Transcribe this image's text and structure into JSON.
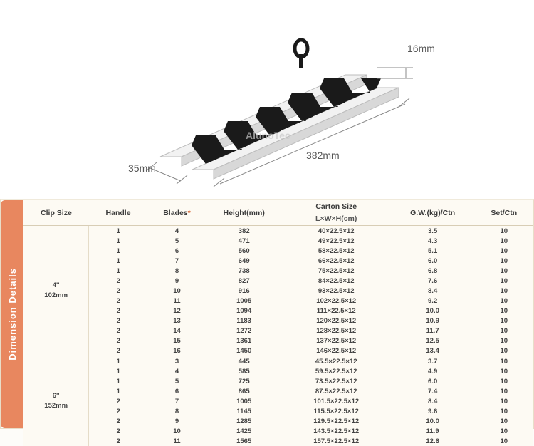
{
  "diagram": {
    "dim_height": "16mm",
    "dim_width": "35mm",
    "dim_length": "382mm",
    "watermark": "AlunoTec"
  },
  "table": {
    "side_label": "Dimension Details",
    "headers": {
      "clip_size": "Clip Size",
      "handle": "Handle",
      "blades": "Blades",
      "height": "Height(mm)",
      "carton_main": "Carton Size",
      "carton_sub": "L×W×H(cm)",
      "gw": "G.W.(kg)/Ctn",
      "set": "Set/Ctn"
    },
    "groups": [
      {
        "clip_label": "4''\n102mm",
        "rows": [
          {
            "handle": "1",
            "blades": "4",
            "height": "382",
            "carton": "40×22.5×12",
            "gw": "3.5",
            "set": "10"
          },
          {
            "handle": "1",
            "blades": "5",
            "height": "471",
            "carton": "49×22.5×12",
            "gw": "4.3",
            "set": "10"
          },
          {
            "handle": "1",
            "blades": "6",
            "height": "560",
            "carton": "58×22.5×12",
            "gw": "5.1",
            "set": "10"
          },
          {
            "handle": "1",
            "blades": "7",
            "height": "649",
            "carton": "66×22.5×12",
            "gw": "6.0",
            "set": "10"
          },
          {
            "handle": "1",
            "blades": "8",
            "height": "738",
            "carton": "75×22.5×12",
            "gw": "6.8",
            "set": "10"
          },
          {
            "handle": "2",
            "blades": "9",
            "height": "827",
            "carton": "84×22.5×12",
            "gw": "7.6",
            "set": "10"
          },
          {
            "handle": "2",
            "blades": "10",
            "height": "916",
            "carton": "93×22.5×12",
            "gw": "8.4",
            "set": "10"
          },
          {
            "handle": "2",
            "blades": "11",
            "height": "1005",
            "carton": "102×22.5×12",
            "gw": "9.2",
            "set": "10"
          },
          {
            "handle": "2",
            "blades": "12",
            "height": "1094",
            "carton": "111×22.5×12",
            "gw": "10.0",
            "set": "10"
          },
          {
            "handle": "2",
            "blades": "13",
            "height": "1183",
            "carton": "120×22.5×12",
            "gw": "10.9",
            "set": "10"
          },
          {
            "handle": "2",
            "blades": "14",
            "height": "1272",
            "carton": "128×22.5×12",
            "gw": "11.7",
            "set": "10"
          },
          {
            "handle": "2",
            "blades": "15",
            "height": "1361",
            "carton": "137×22.5×12",
            "gw": "12.5",
            "set": "10"
          },
          {
            "handle": "2",
            "blades": "16",
            "height": "1450",
            "carton": "146×22.5×12",
            "gw": "13.4",
            "set": "10"
          }
        ]
      },
      {
        "clip_label": "6''\n152mm",
        "rows": [
          {
            "handle": "1",
            "blades": "3",
            "height": "445",
            "carton": "45.5×22.5×12",
            "gw": "3.7",
            "set": "10"
          },
          {
            "handle": "1",
            "blades": "4",
            "height": "585",
            "carton": "59.5×22.5×12",
            "gw": "4.9",
            "set": "10"
          },
          {
            "handle": "1",
            "blades": "5",
            "height": "725",
            "carton": "73.5×22.5×12",
            "gw": "6.0",
            "set": "10"
          },
          {
            "handle": "1",
            "blades": "6",
            "height": "865",
            "carton": "87.5×22.5×12",
            "gw": "7.4",
            "set": "10"
          },
          {
            "handle": "2",
            "blades": "7",
            "height": "1005",
            "carton": "101.5×22.5×12",
            "gw": "8.4",
            "set": "10"
          },
          {
            "handle": "2",
            "blades": "8",
            "height": "1145",
            "carton": "115.5×22.5×12",
            "gw": "9.6",
            "set": "10"
          },
          {
            "handle": "2",
            "blades": "9",
            "height": "1285",
            "carton": "129.5×22.5×12",
            "gw": "10.0",
            "set": "10"
          },
          {
            "handle": "2",
            "blades": "10",
            "height": "1425",
            "carton": "143.5×22.5×12",
            "gw": "11.9",
            "set": "10"
          },
          {
            "handle": "2",
            "blades": "11",
            "height": "1565",
            "carton": "157.5×22.5×12",
            "gw": "12.6",
            "set": "10"
          }
        ]
      }
    ]
  }
}
